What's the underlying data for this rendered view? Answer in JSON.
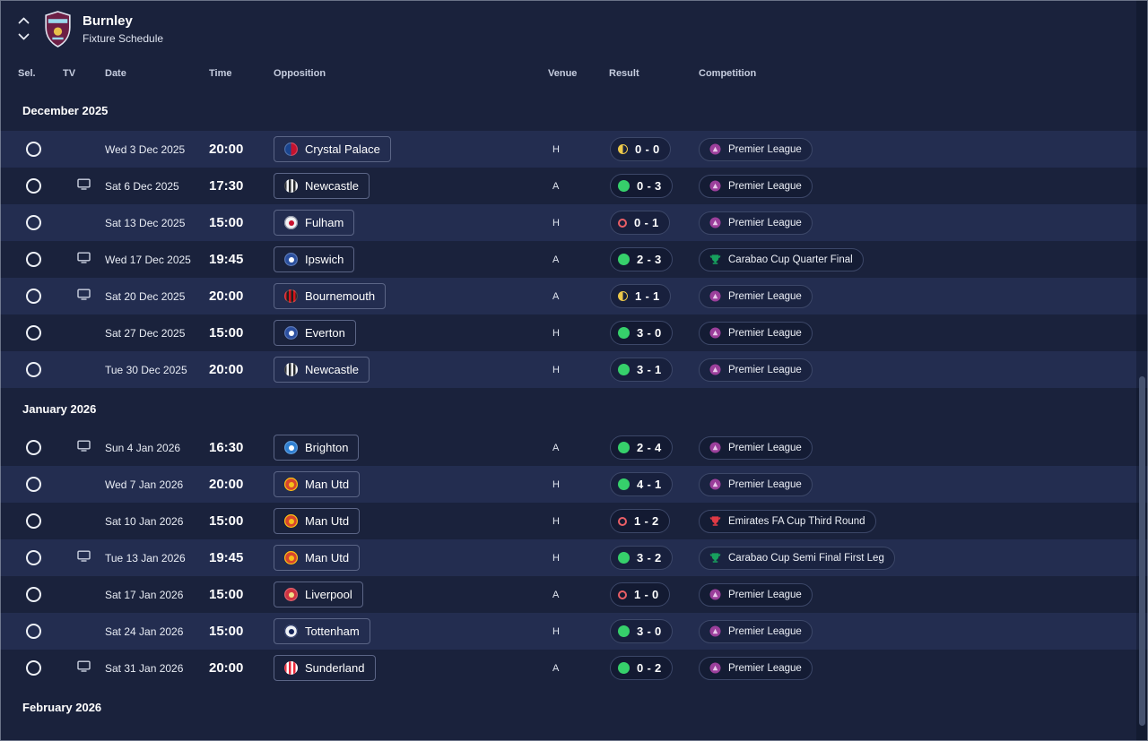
{
  "header": {
    "title": "Burnley",
    "subtitle": "Fixture Schedule"
  },
  "columns": [
    "Sel.",
    "TV",
    "Date",
    "Time",
    "Opposition",
    "Venue",
    "Result",
    "Competition"
  ],
  "legend": {
    "win_color": "#36d06b",
    "draw_color": "#ecc84a",
    "loss_color": "#ea5f66"
  },
  "sections": [
    {
      "label": "December 2025",
      "rows": [
        {
          "tv": false,
          "date": "Wed 3 Dec 2025",
          "time": "20:00",
          "opponent": "Crystal Palace",
          "badge": {
            "style": "split",
            "colors": [
              "#1b458f",
              "#c4122e"
            ],
            "ring": "#ffffff3a"
          },
          "venue": "H",
          "score": "0 - 0",
          "outcome": "draw",
          "competition": {
            "label": "Premier League",
            "icon": "premier-league",
            "color": "#9b3f9b"
          }
        },
        {
          "tv": true,
          "date": "Sat 6 Dec 2025",
          "time": "17:30",
          "opponent": "Newcastle",
          "badge": {
            "style": "stripes",
            "colors": [
              "#25282d",
              "#f2f4f7"
            ],
            "ring": "#ffffff30"
          },
          "venue": "A",
          "score": "0 - 3",
          "outcome": "win",
          "competition": {
            "label": "Premier League",
            "icon": "premier-league",
            "color": "#9b3f9b"
          }
        },
        {
          "tv": false,
          "date": "Sat 13 Dec 2025",
          "time": "15:00",
          "opponent": "Fulham",
          "badge": {
            "style": "solid",
            "colors": [
              "#f2f3f5",
              "#c8102e"
            ],
            "ring": "#8f96a8"
          },
          "venue": "H",
          "score": "0 - 1",
          "outcome": "loss",
          "competition": {
            "label": "Premier League",
            "icon": "premier-league",
            "color": "#9b3f9b"
          }
        },
        {
          "tv": true,
          "date": "Wed 17 Dec 2025",
          "time": "19:45",
          "opponent": "Ipswich",
          "badge": {
            "style": "solid",
            "colors": [
              "#2a4f9e",
              "#ffffff"
            ],
            "ring": "#ffffff3a"
          },
          "venue": "A",
          "score": "2 - 3",
          "outcome": "win",
          "competition": {
            "label": "Carabao Cup Quarter Final",
            "icon": "carabao-cup",
            "color": "#17a05e"
          }
        },
        {
          "tv": true,
          "date": "Sat 20 Dec 2025",
          "time": "20:00",
          "opponent": "Bournemouth",
          "badge": {
            "style": "stripes",
            "colors": [
              "#d3151b",
              "#231f20"
            ],
            "ring": "#ffffff30"
          },
          "venue": "A",
          "score": "1 - 1",
          "outcome": "draw",
          "competition": {
            "label": "Premier League",
            "icon": "premier-league",
            "color": "#9b3f9b"
          }
        },
        {
          "tv": false,
          "date": "Sat 27 Dec 2025",
          "time": "15:00",
          "opponent": "Everton",
          "badge": {
            "style": "solid",
            "colors": [
              "#2b4fa0",
              "#ffffff"
            ],
            "ring": "#ffffff3a"
          },
          "venue": "H",
          "score": "3 - 0",
          "outcome": "win",
          "competition": {
            "label": "Premier League",
            "icon": "premier-league",
            "color": "#9b3f9b"
          }
        },
        {
          "tv": false,
          "date": "Tue 30 Dec 2025",
          "time": "20:00",
          "opponent": "Newcastle",
          "badge": {
            "style": "stripes",
            "colors": [
              "#25282d",
              "#f2f4f7"
            ],
            "ring": "#ffffff30"
          },
          "venue": "H",
          "score": "3 - 1",
          "outcome": "win",
          "competition": {
            "label": "Premier League",
            "icon": "premier-league",
            "color": "#9b3f9b"
          }
        }
      ]
    },
    {
      "label": "January 2026",
      "rows": [
        {
          "tv": true,
          "date": "Sun 4 Jan 2026",
          "time": "16:30",
          "opponent": "Brighton",
          "badge": {
            "style": "solid",
            "colors": [
              "#2f7fd1",
              "#ffffff"
            ],
            "ring": "#ffffff3a"
          },
          "venue": "A",
          "score": "2 - 4",
          "outcome": "win",
          "competition": {
            "label": "Premier League",
            "icon": "premier-league",
            "color": "#9b3f9b"
          }
        },
        {
          "tv": false,
          "date": "Wed 7 Jan 2026",
          "time": "20:00",
          "opponent": "Man Utd",
          "badge": {
            "style": "solid",
            "colors": [
              "#d8452c",
              "#f6c01a"
            ],
            "ring": "#f3c114"
          },
          "venue": "H",
          "score": "4 - 1",
          "outcome": "win",
          "competition": {
            "label": "Premier League",
            "icon": "premier-league",
            "color": "#9b3f9b"
          }
        },
        {
          "tv": false,
          "date": "Sat 10 Jan 2026",
          "time": "15:00",
          "opponent": "Man Utd",
          "badge": {
            "style": "solid",
            "colors": [
              "#d8452c",
              "#f6c01a"
            ],
            "ring": "#f3c114"
          },
          "venue": "H",
          "score": "1 - 2",
          "outcome": "loss",
          "competition": {
            "label": "Emirates FA Cup Third Round",
            "icon": "fa-cup",
            "color": "#e03a45"
          }
        },
        {
          "tv": true,
          "date": "Tue 13 Jan 2026",
          "time": "19:45",
          "opponent": "Man Utd",
          "badge": {
            "style": "solid",
            "colors": [
              "#d8452c",
              "#f6c01a"
            ],
            "ring": "#f3c114"
          },
          "venue": "H",
          "score": "3 - 2",
          "outcome": "win",
          "competition": {
            "label": "Carabao Cup Semi Final First Leg",
            "icon": "carabao-cup",
            "color": "#17a05e"
          }
        },
        {
          "tv": false,
          "date": "Sat 17 Jan 2026",
          "time": "15:00",
          "opponent": "Liverpool",
          "badge": {
            "style": "solid",
            "colors": [
              "#cf3341",
              "#f0e087"
            ],
            "ring": "#ffffff3a"
          },
          "venue": "A",
          "score": "1 - 0",
          "outcome": "loss",
          "competition": {
            "label": "Premier League",
            "icon": "premier-league",
            "color": "#9b3f9b"
          }
        },
        {
          "tv": false,
          "date": "Sat 24 Jan 2026",
          "time": "15:00",
          "opponent": "Tottenham",
          "badge": {
            "style": "solid",
            "colors": [
              "#eef1f6",
              "#132257"
            ],
            "ring": "#2a3766"
          },
          "venue": "H",
          "score": "3 - 0",
          "outcome": "win",
          "competition": {
            "label": "Premier League",
            "icon": "premier-league",
            "color": "#9b3f9b"
          }
        },
        {
          "tv": true,
          "date": "Sat 31 Jan 2026",
          "time": "20:00",
          "opponent": "Sunderland",
          "badge": {
            "style": "stripes",
            "colors": [
              "#eb2436",
              "#ffffff"
            ],
            "ring": "#ffffff30"
          },
          "venue": "A",
          "score": "0 - 2",
          "outcome": "win",
          "competition": {
            "label": "Premier League",
            "icon": "premier-league",
            "color": "#9b3f9b"
          }
        }
      ]
    },
    {
      "label": "February 2026",
      "rows": []
    }
  ]
}
